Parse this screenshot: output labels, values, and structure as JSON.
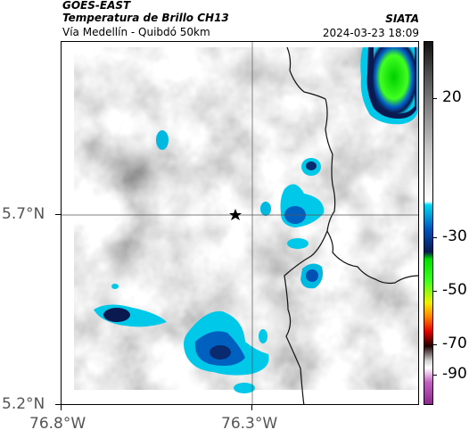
{
  "header": {
    "satellite": "GOES-EAST",
    "product": "Temperatura de Brillo CH13",
    "region": "Vía Medellín - Quibdó 50km",
    "brand": "SIATA",
    "datetime": "2024-03-23 18:09"
  },
  "map": {
    "x_ticks": [
      "76.8°W",
      "76.3°W"
    ],
    "y_ticks": [
      "5.7°N",
      "5.2°N"
    ],
    "marker": "star-marker"
  },
  "colorbar": {
    "labels": [
      "20",
      "-30",
      "-50",
      "-70",
      "-90"
    ],
    "colors": {
      "warm_top": "#111111",
      "gray_mid": "#9a9a9a",
      "white": "#ffffff",
      "cyan": "#00c8e8",
      "blue": "#0050b4",
      "navy": "#0a1a50",
      "green": "#00e000",
      "yellow": "#f0f000",
      "orange": "#ff8000",
      "red": "#e00000",
      "dark": "#200000",
      "magenta": "#b040b0"
    }
  }
}
